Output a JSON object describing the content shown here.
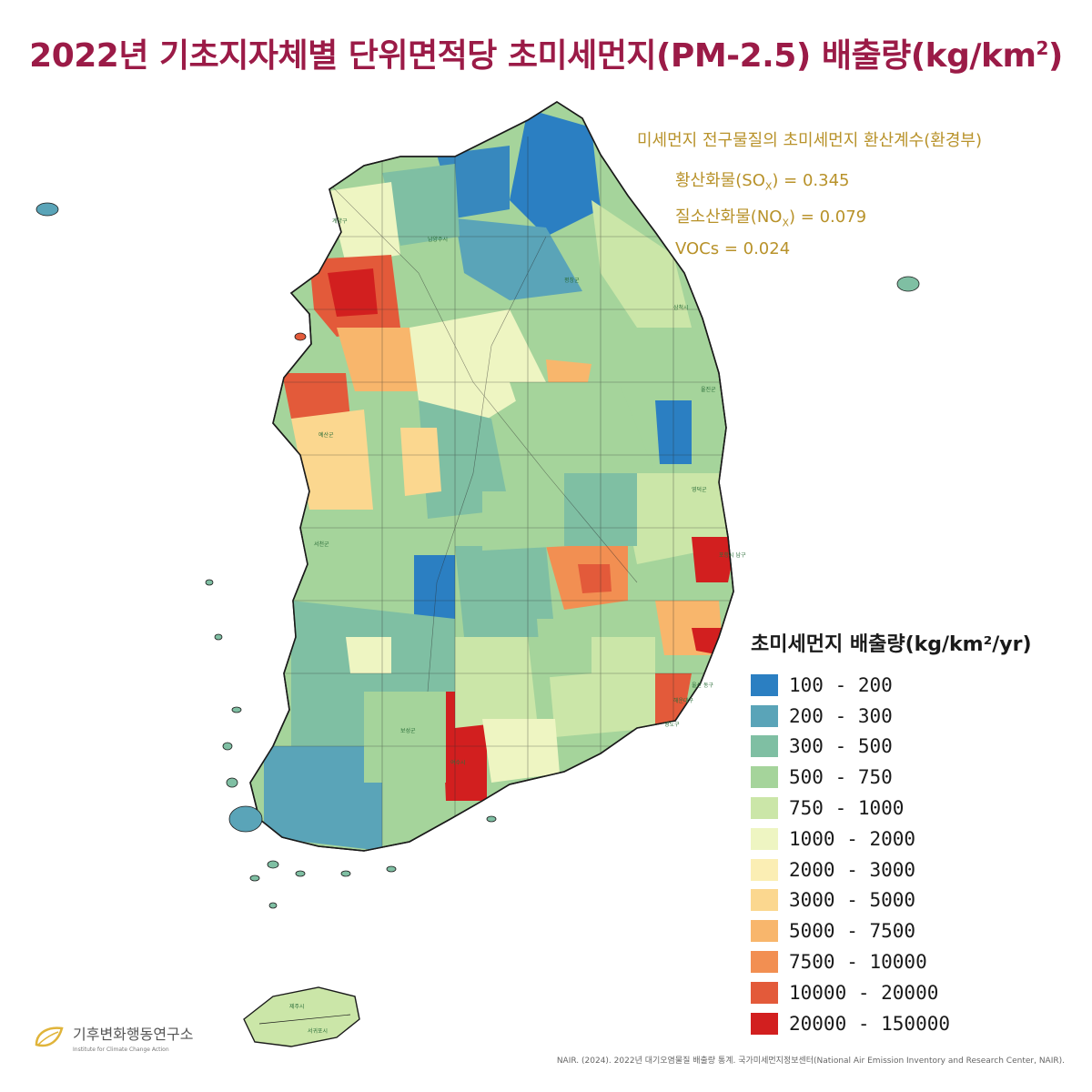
{
  "title": {
    "main": "2022년 기초지자체별 단위면적당 초미세먼지(PM-2.5) 배출량(kg/km",
    "sup": "2",
    "end": ")"
  },
  "conversion": {
    "heading": "미세먼지 전구물질의 초미세먼지 환산계수(환경부)",
    "sox": {
      "pre": "황산화물(SO",
      "sub": "X",
      "post": ") = 0.345"
    },
    "nox": {
      "pre": "질소산화물(NO",
      "sub": "X",
      "post": ") = 0.079"
    },
    "voc": "VOCs = 0.024"
  },
  "legend": {
    "title": "초미세먼지 배출량(kg/km²/yr)",
    "items": [
      {
        "label": "100 - 200",
        "color": "#2b7fc2"
      },
      {
        "label": "200 - 300",
        "color": "#5aa4b8"
      },
      {
        "label": "300 - 500",
        "color": "#7fbfa3"
      },
      {
        "label": "500 - 750",
        "color": "#a5d49b"
      },
      {
        "label": "750 - 1000",
        "color": "#cbe6a8"
      },
      {
        "label": "1000 - 2000",
        "color": "#eef5c2"
      },
      {
        "label": "2000 - 3000",
        "color": "#fbeeb4"
      },
      {
        "label": "3000 - 5000",
        "color": "#fbd78f"
      },
      {
        "label": "5000 - 7500",
        "color": "#f8b66c"
      },
      {
        "label": "7500 - 10000",
        "color": "#f28f52"
      },
      {
        "label": "10000 - 20000",
        "color": "#e35a3a"
      },
      {
        "label": "20000 - 150000",
        "color": "#d21f1f"
      }
    ]
  },
  "map_labels": {
    "labels": [
      "계양구",
      "남양주시",
      "평창군",
      "삼척시",
      "영덕군",
      "울진군",
      "포항시 남구",
      "울산 동구",
      "해운대구",
      "영도구",
      "예산군",
      "서천군",
      "보성군",
      "여수시",
      "제주시",
      "서귀포시"
    ]
  },
  "logo": {
    "name": "기후변화행동연구소",
    "tagline": "Institute for Climate Change Action"
  },
  "source": "NAIR. (2024). 2022년 대기오염물질 배출량 통계. 국가미세먼지정보센터(National Air Emission Inventory and Research Center, NAIR)."
}
